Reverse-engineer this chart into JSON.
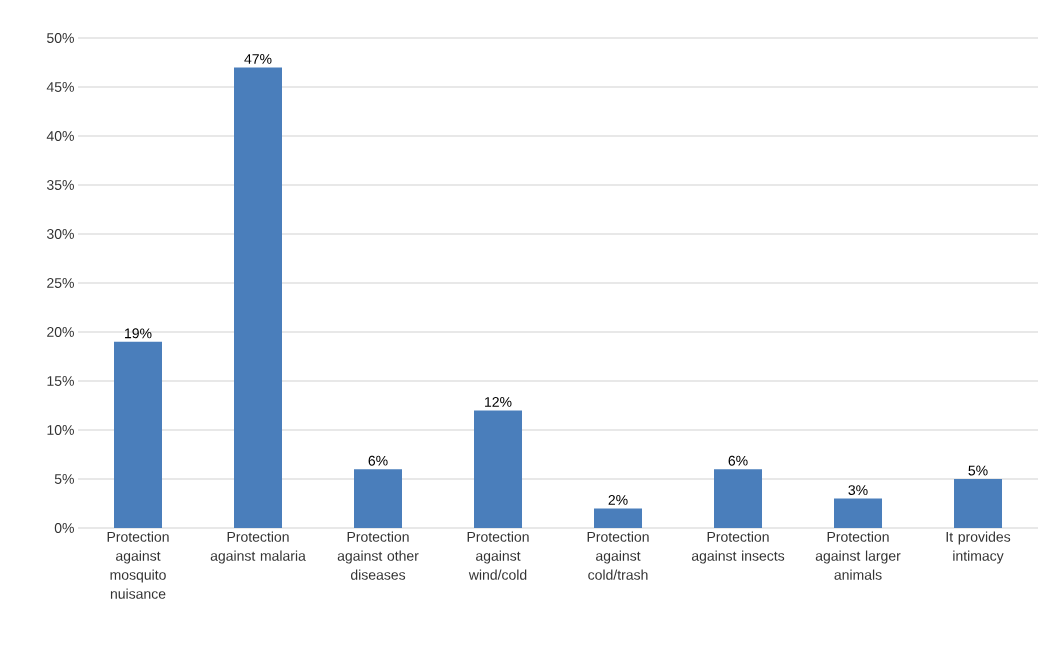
{
  "chart_data": {
    "type": "bar",
    "categories": [
      "Protection against mosquito nuisance",
      "Protection against malaria",
      "Protection against other diseases",
      "Protection against wind/cold",
      "Protection against cold/trash",
      "Protection against insects",
      "Protection against larger animals",
      "It provides intimacy"
    ],
    "values": [
      19,
      47,
      6,
      12,
      2,
      6,
      3,
      5
    ],
    "value_labels": [
      "19%",
      "47%",
      "6%",
      "12%",
      "2%",
      "6%",
      "3%",
      "5%"
    ],
    "color": "#4a7ebb",
    "ylim": [
      0,
      50
    ],
    "yticks": [
      {
        "value": 0,
        "label": "0%"
      },
      {
        "value": 5,
        "label": "5%"
      },
      {
        "value": 10,
        "label": "10%"
      },
      {
        "value": 15,
        "label": "15%"
      },
      {
        "value": 20,
        "label": "20%"
      },
      {
        "value": 25,
        "label": "25%"
      },
      {
        "value": 30,
        "label": "30%"
      },
      {
        "value": 35,
        "label": "35%"
      },
      {
        "value": 40,
        "label": "40%"
      },
      {
        "value": 45,
        "label": "45%"
      },
      {
        "value": 50,
        "label": "50%"
      }
    ],
    "grid": "y"
  }
}
